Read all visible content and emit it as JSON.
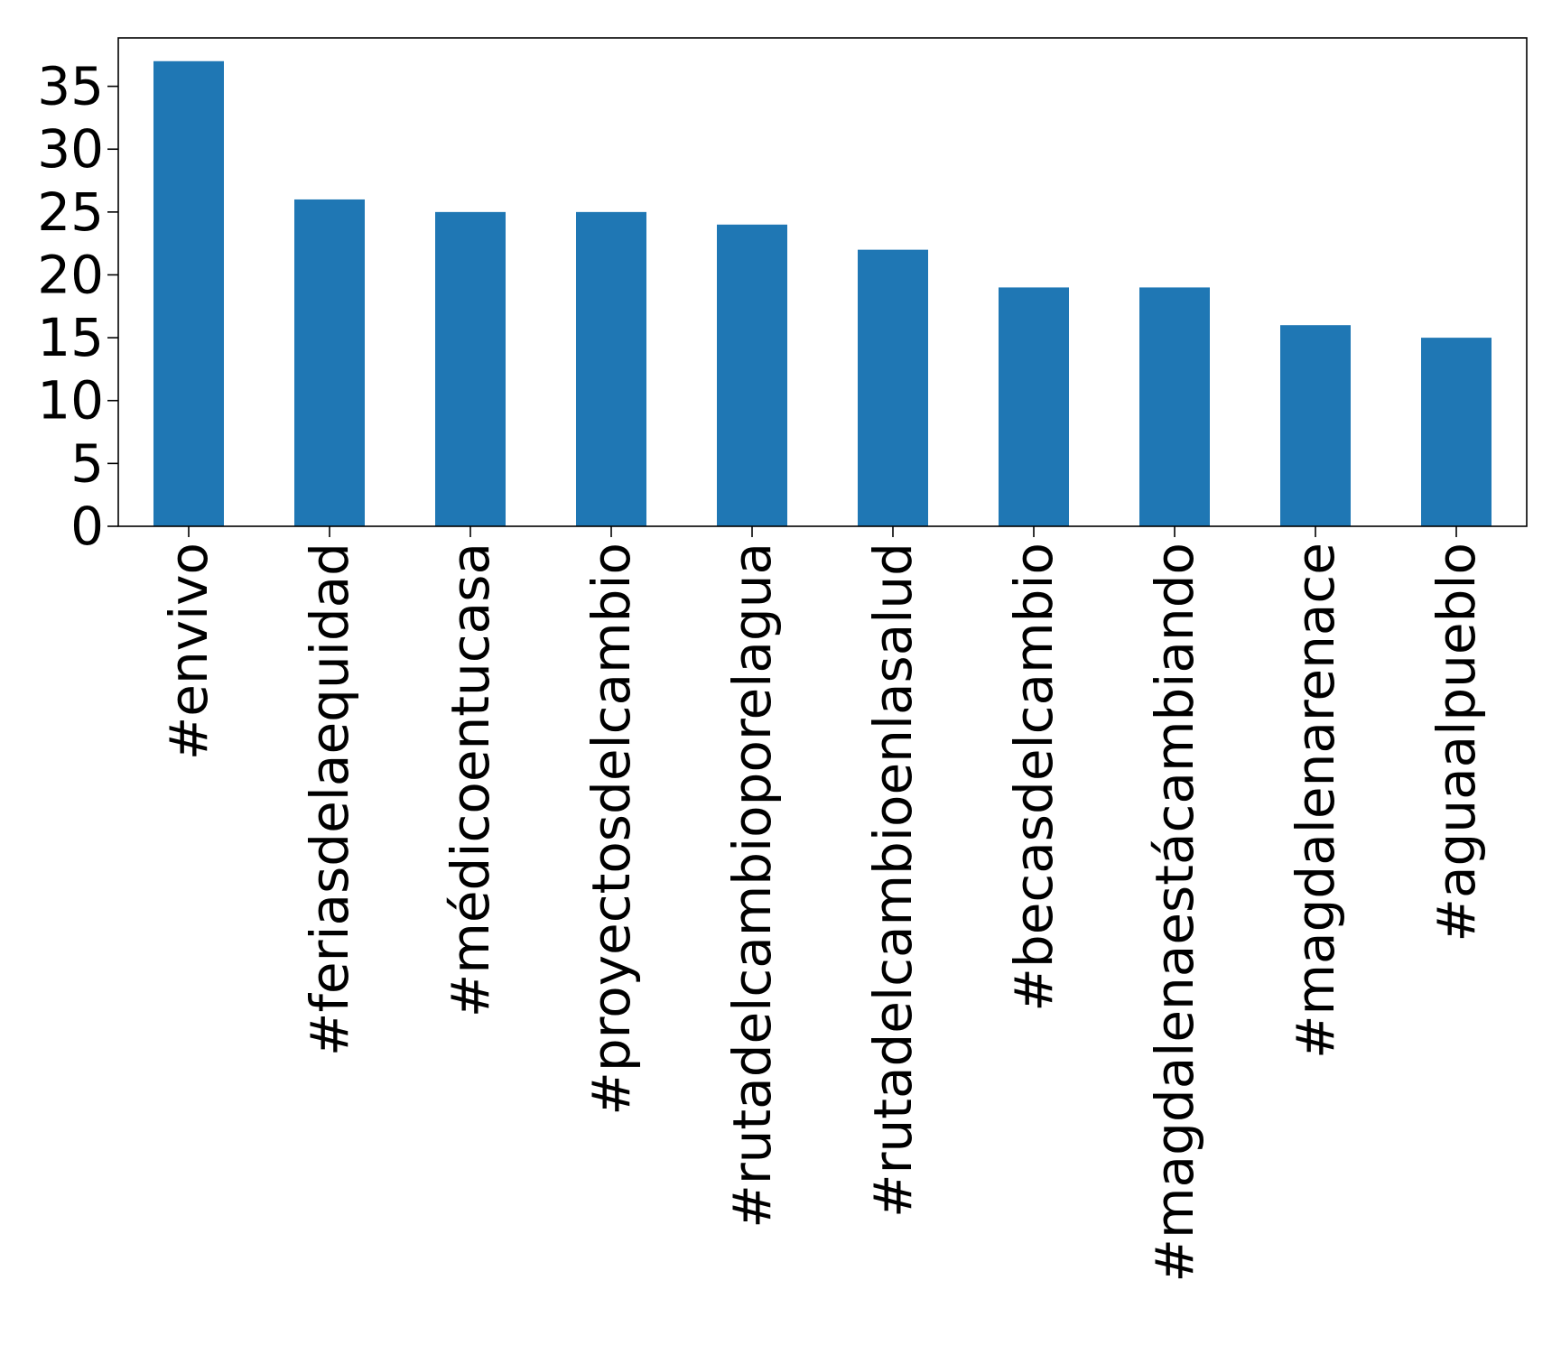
{
  "chart_data": {
    "type": "bar",
    "categories": [
      "#envivo",
      "#feriasdelaequidad",
      "#médicoentucasa",
      "#proyectosdelcambio",
      "#rutadelcambioporelagua",
      "#rutadelcambioenlasalud",
      "#becasdelcambio",
      "#magdalenaestácambiando",
      "#magdalenarenace",
      "#aguaalpueblo"
    ],
    "values": [
      37,
      26,
      25,
      25,
      24,
      22,
      19,
      19,
      16,
      15
    ],
    "yticks": [
      "0",
      "5",
      "10",
      "15",
      "20",
      "25",
      "30",
      "35"
    ],
    "ylim": [
      0,
      38.85
    ],
    "grid": false,
    "legend": "none",
    "title": "",
    "xlabel": "",
    "ylabel": "",
    "colors": {
      "bar": "#1f77b4",
      "axis": "#000000"
    }
  }
}
